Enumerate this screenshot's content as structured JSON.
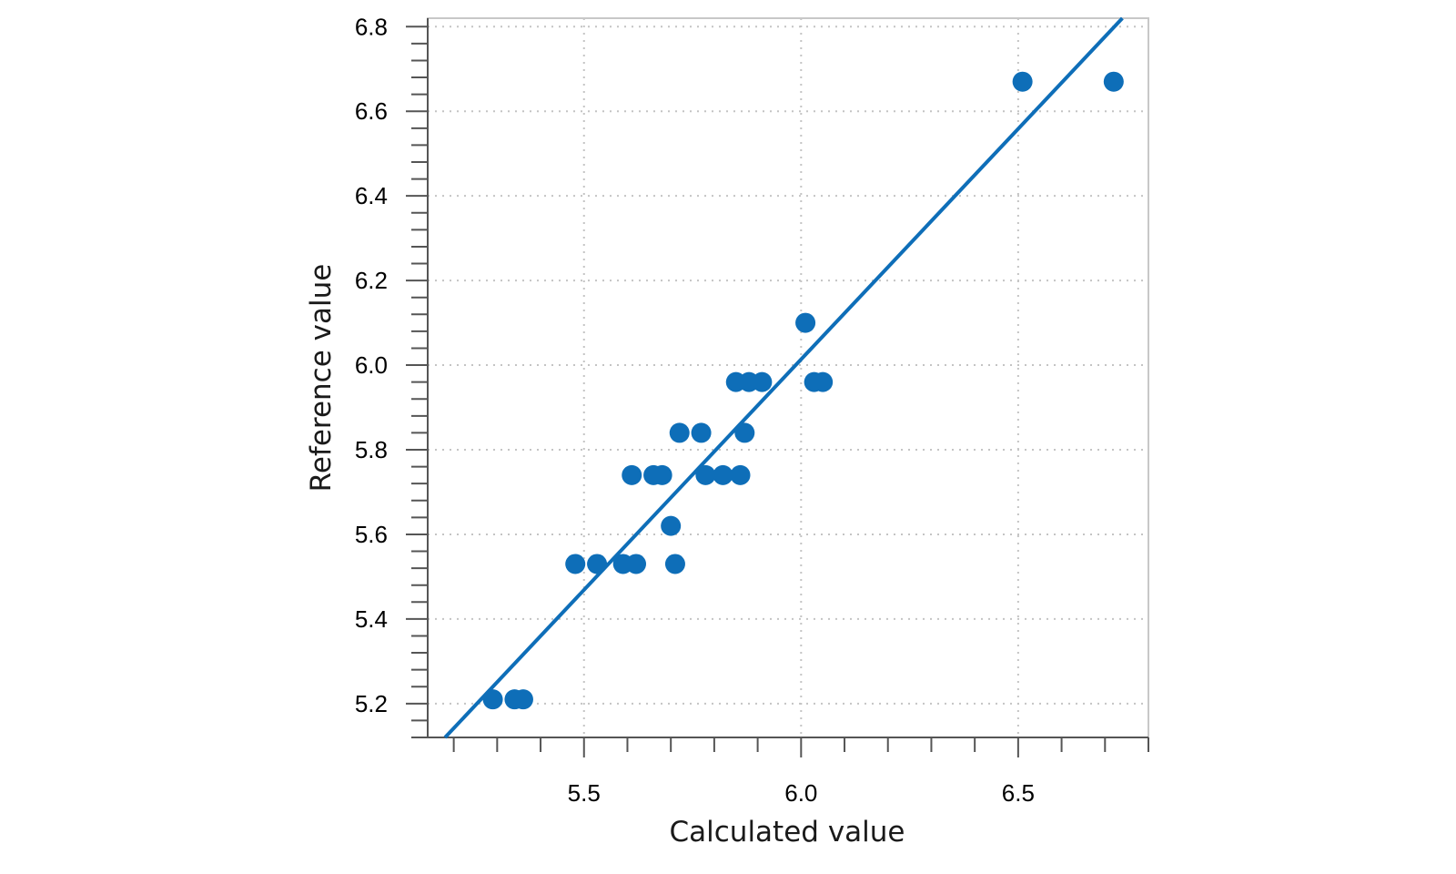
{
  "chart_data": {
    "type": "scatter",
    "xlabel": "Calculated value",
    "ylabel": "Reference value",
    "xlim": [
      5.14,
      6.8
    ],
    "ylim": [
      5.12,
      6.82
    ],
    "xticks": [
      5.5,
      6.0,
      6.5
    ],
    "yticks": [
      5.2,
      5.4,
      5.6,
      5.8,
      6.0,
      6.2,
      6.4,
      6.6,
      6.8
    ],
    "tick_label_formats": {
      "x": 1,
      "y": 1
    },
    "grid": true,
    "point_color": "#0e6eb8",
    "line_color": "#0e6eb8",
    "regression_line": {
      "x": [
        5.18,
        6.74
      ],
      "y": [
        5.12,
        6.82
      ]
    },
    "points": [
      {
        "x": 5.29,
        "y": 5.21
      },
      {
        "x": 5.34,
        "y": 5.21
      },
      {
        "x": 5.36,
        "y": 5.21
      },
      {
        "x": 5.48,
        "y": 5.53
      },
      {
        "x": 5.53,
        "y": 5.53
      },
      {
        "x": 5.59,
        "y": 5.53
      },
      {
        "x": 5.62,
        "y": 5.53
      },
      {
        "x": 5.71,
        "y": 5.53
      },
      {
        "x": 5.7,
        "y": 5.62
      },
      {
        "x": 5.61,
        "y": 5.74
      },
      {
        "x": 5.66,
        "y": 5.74
      },
      {
        "x": 5.68,
        "y": 5.74
      },
      {
        "x": 5.78,
        "y": 5.74
      },
      {
        "x": 5.82,
        "y": 5.74
      },
      {
        "x": 5.86,
        "y": 5.74
      },
      {
        "x": 5.72,
        "y": 5.84
      },
      {
        "x": 5.77,
        "y": 5.84
      },
      {
        "x": 5.87,
        "y": 5.84
      },
      {
        "x": 5.85,
        "y": 5.96
      },
      {
        "x": 5.88,
        "y": 5.96
      },
      {
        "x": 5.91,
        "y": 5.96
      },
      {
        "x": 6.03,
        "y": 5.96
      },
      {
        "x": 6.05,
        "y": 5.96
      },
      {
        "x": 6.01,
        "y": 6.1
      },
      {
        "x": 6.51,
        "y": 6.67
      },
      {
        "x": 6.72,
        "y": 6.67
      }
    ]
  }
}
